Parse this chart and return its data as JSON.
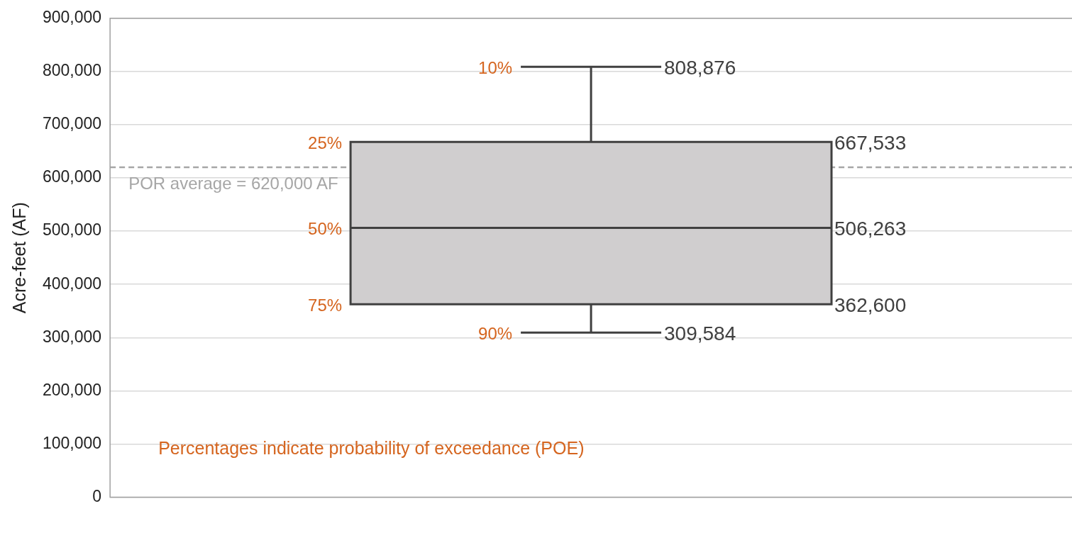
{
  "chart_data": {
    "type": "box",
    "ylabel": "Acre-feet (AF)",
    "categories": [
      null
    ],
    "boxes": [
      {
        "low": 309584,
        "q1": 362600,
        "median": 506263,
        "q3": 667533,
        "high": 808876
      }
    ],
    "color": "#d0cecf",
    "ylim": [
      0,
      900000
    ],
    "yticks": [
      {
        "value": 0,
        "label": "0"
      },
      {
        "value": 100000,
        "label": "100,000"
      },
      {
        "value": 200000,
        "label": "200,000"
      },
      {
        "value": 300000,
        "label": "300,000"
      },
      {
        "value": 400000,
        "label": "400,000"
      },
      {
        "value": 500000,
        "label": "500,000"
      },
      {
        "value": 600000,
        "label": "600,000"
      },
      {
        "value": 700000,
        "label": "700,000"
      },
      {
        "value": 800000,
        "label": "800,000"
      },
      {
        "value": 900000,
        "label": "900,000"
      }
    ],
    "grid": "y",
    "legend": false,
    "ref_lines": [
      {
        "axis": "y",
        "value": 620000,
        "label": "POR average = 620,000 AF",
        "color": "#a6a6a6",
        "line_style": "dashed"
      }
    ],
    "annotations": [
      "10%",
      "25%",
      "50%",
      "75%",
      "90%",
      "808,876",
      "667,533",
      "506,263",
      "362,600",
      "309,584",
      "Percentages indicate probability of exceedance (POE)"
    ]
  }
}
